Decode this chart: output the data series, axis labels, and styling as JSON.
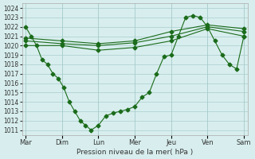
{
  "title": "",
  "xlabel": "Pression niveau de la mer( hPa )",
  "ylabel": "",
  "ylim": [
    1011,
    1024
  ],
  "yticks": [
    1011,
    1012,
    1013,
    1014,
    1015,
    1016,
    1017,
    1018,
    1019,
    1020,
    1021,
    1022,
    1023,
    1024
  ],
  "days": [
    "Mar",
    "Dim",
    "Lun",
    "Mer",
    "Jeu",
    "Ven",
    "Sam"
  ],
  "day_positions": [
    0,
    1,
    2,
    3,
    4,
    5,
    6
  ],
  "bg_color": "#d8eeee",
  "grid_color": "#aacccc",
  "line_color": "#1a6b1a",
  "line1_x": [
    0.0,
    0.15,
    0.3,
    0.45,
    0.6,
    0.75,
    0.9,
    1.05,
    1.2,
    1.35,
    1.5,
    1.65,
    1.8,
    2.0,
    2.2,
    2.4,
    2.6,
    2.8,
    3.0,
    3.2,
    3.4,
    3.6,
    3.8,
    4.0,
    4.2,
    4.4,
    4.6,
    4.8,
    5.0,
    5.2,
    5.4,
    5.6,
    5.8,
    6.0
  ],
  "line1_y": [
    1022.0,
    1021.0,
    1020.0,
    1018.5,
    1018.0,
    1017.0,
    1016.5,
    1015.5,
    1014.0,
    1013.0,
    1012.0,
    1011.5,
    1011.0,
    1011.5,
    1012.5,
    1012.8,
    1013.0,
    1013.2,
    1013.5,
    1014.5,
    1015.0,
    1017.0,
    1018.8,
    1019.0,
    1021.0,
    1023.0,
    1023.2,
    1023.0,
    1022.0,
    1020.5,
    1019.0,
    1018.0,
    1017.5,
    1021.0
  ],
  "line2_x": [
    0.0,
    1.0,
    2.0,
    3.0,
    4.0,
    5.0,
    6.0
  ],
  "line2_y": [
    1020.0,
    1020.0,
    1019.5,
    1019.8,
    1020.5,
    1021.8,
    1021.0
  ],
  "line3_x": [
    0.0,
    1.0,
    2.0,
    3.0,
    4.0,
    5.0,
    6.0
  ],
  "line3_y": [
    1020.5,
    1020.2,
    1020.0,
    1020.3,
    1021.0,
    1022.0,
    1021.5
  ],
  "line4_x": [
    0.0,
    1.0,
    2.0,
    3.0,
    4.0,
    5.0,
    6.0
  ],
  "line4_y": [
    1020.8,
    1020.5,
    1020.2,
    1020.5,
    1021.5,
    1022.2,
    1021.8
  ]
}
